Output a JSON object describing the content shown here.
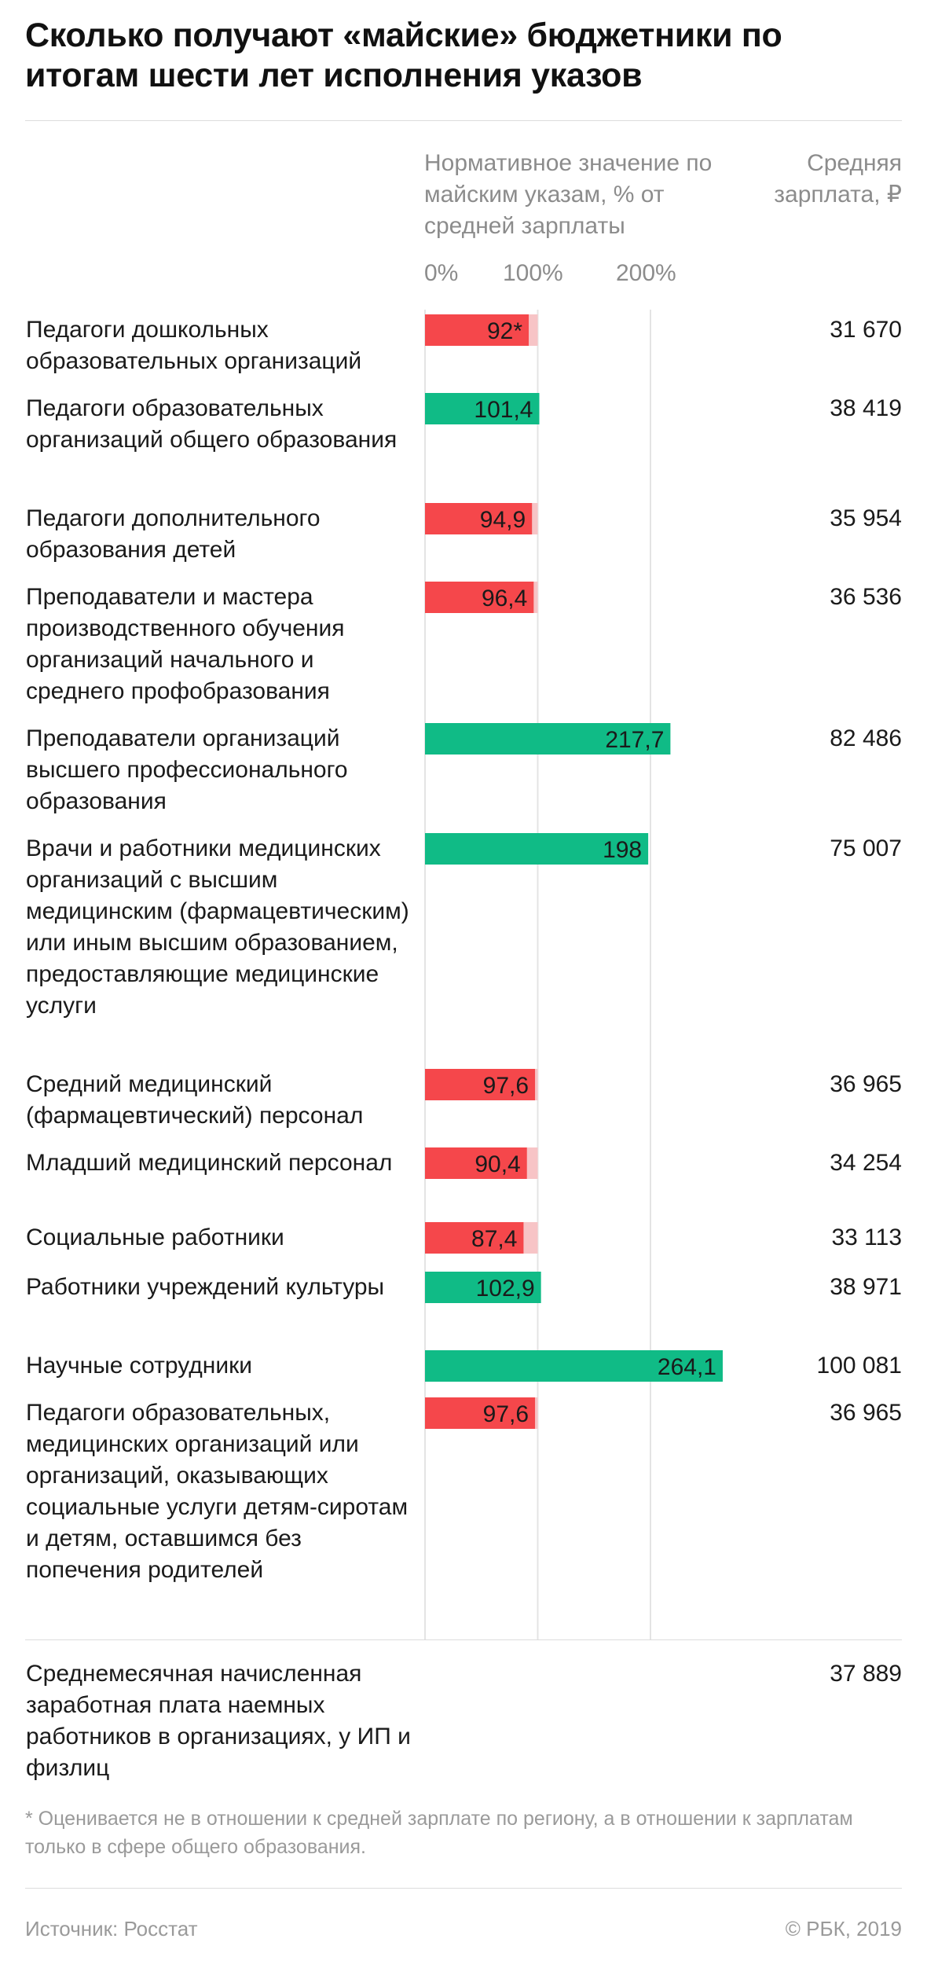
{
  "colors": {
    "below": "#f5474b",
    "below_light": "#f7c4c6",
    "above": "#10bb86",
    "grid": "#e4e4e4"
  },
  "chart_data": {
    "type": "bar",
    "orientation": "horizontal",
    "title": "Сколько получают «майские» бюджетники по итогам шести лет исполнения указов",
    "col_head_left": "Нормативное значение по майским указам, % от средней зарплаты",
    "col_head_right": "Средняя зарплата, ₽",
    "xlim": [
      0,
      270
    ],
    "xticks": [
      0,
      100,
      200
    ],
    "xtick_labels": [
      "0%",
      "100%",
      "200%"
    ],
    "target": 100,
    "rows": [
      {
        "label": "Педагоги дошкольных образовательных организаций",
        "value": 92,
        "value_label": "92*",
        "salary": "31 670"
      },
      {
        "label": "Педагоги образовательных организаций общего образования",
        "value": 101.4,
        "value_label": "101,4",
        "salary": "38 419"
      },
      {
        "label": "Педагоги дополнительного образования детей",
        "value": 94.9,
        "value_label": "94,9",
        "salary": "35 954"
      },
      {
        "label": "Преподаватели и мастера производственного обучения организаций начального и среднего профобразования",
        "value": 96.4,
        "value_label": "96,4",
        "salary": "36 536"
      },
      {
        "label": "Преподаватели организаций высшего профессионального образования",
        "value": 217.7,
        "value_label": "217,7",
        "salary": "82 486"
      },
      {
        "label": "Врачи и работники медицинских организаций с высшим медицинским (фармацевтическим) или иным высшим образованием, предоставляющие медицинские услуги",
        "value": 198,
        "value_label": "198",
        "salary": "75 007"
      },
      {
        "label": "Средний медицинский (фармацевтический) персонал",
        "value": 97.6,
        "value_label": "97,6",
        "salary": "36 965"
      },
      {
        "label": "Младший медицинский персонал",
        "value": 90.4,
        "value_label": "90,4",
        "salary": "34 254"
      },
      {
        "label": "Социальные работники",
        "value": 87.4,
        "value_label": "87,4",
        "salary": "33 113"
      },
      {
        "label": "Работники учреждений культуры",
        "value": 102.9,
        "value_label": "102,9",
        "salary": "38 971"
      },
      {
        "label": "Научные сотрудники",
        "value": 264.1,
        "value_label": "264,1",
        "salary": "100 081"
      },
      {
        "label": "Педагоги образовательных, медицинских организаций или организаций, оказывающих социальные услуги детям-сиротам и детям, оставшимся без попечения родителей",
        "value": 97.6,
        "value_label": "97,6",
        "salary": "36 965"
      }
    ],
    "summary": {
      "label": "Среднемесячная начисленная заработная плата наемных работников в организациях, у ИП и физлиц",
      "salary": "37 889"
    }
  },
  "footnote": "* Оценивается не в отношении к средней зарплате по региону, а в отношении к зарплатам только в сфере общего образования.",
  "source": "Источник: Росстат",
  "copyright": "© РБК, 2019"
}
